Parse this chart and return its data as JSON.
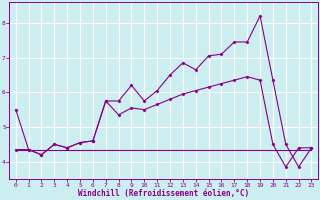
{
  "xlabel": "Windchill (Refroidissement éolien,°C)",
  "bg_color": "#cceef0",
  "line_color": "#880088",
  "grid_color": "#ffffff",
  "xlim": [
    -0.5,
    23.5
  ],
  "ylim": [
    3.5,
    8.6
  ],
  "yticks": [
    4,
    5,
    6,
    7,
    8
  ],
  "xticks": [
    0,
    1,
    2,
    3,
    4,
    5,
    6,
    7,
    8,
    9,
    10,
    11,
    12,
    13,
    14,
    15,
    16,
    17,
    18,
    19,
    20,
    21,
    22,
    23
  ],
  "line1_x": [
    0,
    1,
    2,
    3,
    4,
    5,
    6,
    7,
    8,
    9,
    10,
    11,
    12,
    13,
    14,
    15,
    16,
    17,
    18,
    19,
    20,
    21,
    22,
    23
  ],
  "line1_y": [
    5.5,
    4.35,
    4.2,
    4.5,
    4.4,
    4.55,
    4.6,
    5.75,
    5.75,
    6.2,
    5.75,
    6.05,
    6.5,
    6.85,
    6.65,
    7.05,
    7.1,
    7.45,
    7.45,
    8.2,
    6.35,
    4.5,
    3.85,
    4.4
  ],
  "line2_x": [
    0,
    1,
    2,
    3,
    4,
    5,
    6,
    7,
    8,
    9,
    10,
    11,
    12,
    13,
    14,
    15,
    16,
    17,
    18,
    19,
    20,
    21,
    22,
    23
  ],
  "line2_y": [
    4.35,
    4.35,
    4.35,
    4.35,
    4.35,
    4.35,
    4.35,
    4.35,
    4.35,
    4.35,
    4.35,
    4.35,
    4.35,
    4.35,
    4.35,
    4.35,
    4.35,
    4.35,
    4.35,
    4.35,
    4.35,
    4.35,
    4.35,
    4.35
  ],
  "line3_x": [
    0,
    1,
    2,
    3,
    4,
    5,
    6,
    7,
    8,
    9,
    10,
    11,
    12,
    13,
    14,
    15,
    16,
    17,
    18,
    19,
    20,
    21,
    22,
    23
  ],
  "line3_y": [
    4.35,
    4.35,
    4.2,
    4.5,
    4.4,
    4.55,
    4.6,
    5.75,
    5.35,
    5.55,
    5.5,
    5.65,
    5.8,
    5.95,
    6.05,
    6.15,
    6.25,
    6.35,
    6.45,
    6.35,
    4.5,
    3.85,
    4.4,
    4.4
  ]
}
